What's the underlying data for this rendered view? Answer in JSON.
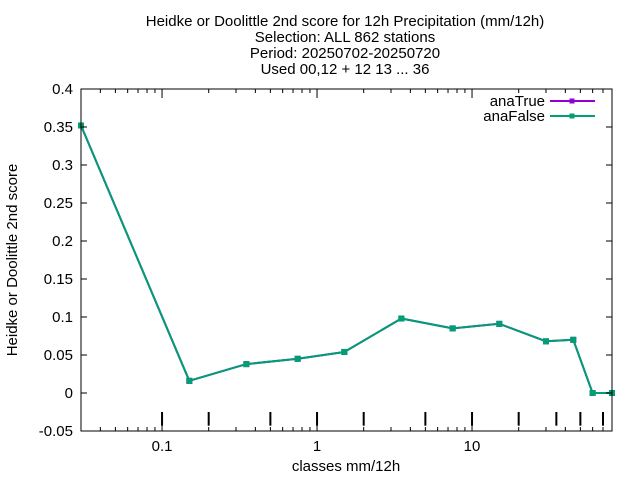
{
  "chart_data": {
    "type": "line",
    "title_lines": [
      "Heidke or Doolittle 2nd score  for 12h Precipitation (mm/12h)",
      "Selection: ALL    862 stations",
      "Period: 20250702-20250720",
      "Used 00,12 + 12 13 ... 36"
    ],
    "xlabel": "classes mm/12h",
    "ylabel": "Heidke or Doolittle 2nd score",
    "x_scale": "log",
    "xlim": [
      0.03,
      80
    ],
    "ylim": [
      -0.05,
      0.4
    ],
    "x_ticks": [
      0.1,
      1,
      10
    ],
    "x_tick_labels": [
      "0.1",
      "1",
      "10"
    ],
    "y_ticks": [
      -0.05,
      0,
      0.05,
      0.1,
      0.15,
      0.2,
      0.25,
      0.3,
      0.35,
      0.4
    ],
    "y_tick_labels": [
      "-0.05",
      "0",
      "0.05",
      "0.1",
      "0.15",
      "0.2",
      "0.25",
      "0.3",
      "0.35",
      "0.4"
    ],
    "class_markers": [
      0.1,
      0.2,
      0.5,
      1,
      2,
      5,
      10,
      20,
      35,
      50,
      70
    ],
    "grid": false,
    "legend_position": "top-right",
    "x": [
      0.03,
      0.15,
      0.35,
      0.75,
      1.5,
      3.5,
      7.5,
      15,
      30,
      45,
      60,
      80
    ],
    "series": [
      {
        "name": "anaTrue",
        "color": "#9400d3",
        "marker": "square",
        "values": [
          0.352,
          0.016,
          0.038,
          0.045,
          0.054,
          0.098,
          0.085,
          0.091,
          0.068,
          0.07,
          0.0,
          0.0
        ]
      },
      {
        "name": "anaFalse",
        "color": "#009e73",
        "marker": "square",
        "values": [
          0.352,
          0.016,
          0.038,
          0.045,
          0.054,
          0.098,
          0.085,
          0.091,
          0.068,
          0.07,
          0.0,
          0.0
        ]
      }
    ]
  }
}
